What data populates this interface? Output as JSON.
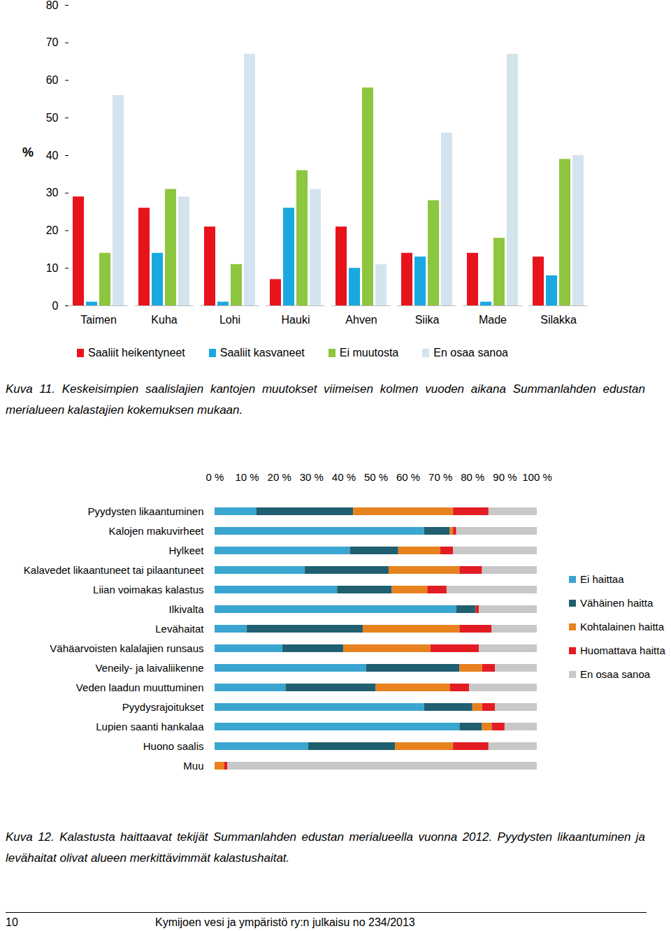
{
  "chart_data": [
    {
      "type": "bar",
      "ylabel": "%",
      "categories": [
        "Taimen",
        "Kuha",
        "Lohi",
        "Hauki",
        "Ahven",
        "Siika",
        "Made",
        "Silakka"
      ],
      "series": [
        {
          "name": "Saaliit heikentyneet",
          "color": "#e8141b",
          "values": [
            29,
            26,
            21,
            7,
            21,
            14,
            14,
            13
          ]
        },
        {
          "name": "Saaliit kasvaneet",
          "color": "#19a9e0",
          "values": [
            1,
            14,
            1,
            26,
            10,
            13,
            1,
            8
          ]
        },
        {
          "name": "Ei muutosta",
          "color": "#8dc63f",
          "values": [
            14,
            31,
            11,
            36,
            58,
            28,
            18,
            39
          ]
        },
        {
          "name": "En osaa sanoa",
          "color": "#d3e4ef",
          "values": [
            56,
            29,
            67,
            31,
            11,
            46,
            67,
            40
          ]
        }
      ],
      "ylim": [
        0,
        80
      ],
      "yticks": [
        0,
        10,
        20,
        30,
        40,
        50,
        60,
        70,
        80
      ],
      "grid": false,
      "legend": "bottom",
      "caption": "Kuva 11.  Keskeisimpien saalislajien kantojen muutokset viimeisen kolmen vuoden aikana Summanlahden edustan merialueen kalastajien kokemuksen mukaan."
    },
    {
      "type": "bar",
      "orientation": "horizontal",
      "stacked": true,
      "categories": [
        "Pyydysten likaantuminen",
        "Kalojen makuvirheet",
        "Hylkeet",
        "Kalavedet likaantuneet tai pilaantuneet",
        "Liian voimakas kalastus",
        "Ilkivalta",
        "Levähaitat",
        "Vähäarvoisten kalalajien runsaus",
        "Veneily- ja laivaliikenne",
        "Veden laadun muuttuminen",
        "Pyydysrajoitukset",
        "Lupien saanti hankalaa",
        "Huono saalis",
        "Muu"
      ],
      "series": [
        {
          "name": "Ei haittaa",
          "color": "#3aa6d0",
          "values": [
            13,
            65,
            42,
            28,
            38,
            75,
            10,
            21,
            47,
            22,
            65,
            76,
            29,
            0
          ]
        },
        {
          "name": "Vähäinen haitta",
          "color": "#1f5f70",
          "values": [
            30,
            8,
            15,
            26,
            17,
            6,
            36,
            19,
            29,
            28,
            15,
            7,
            27,
            0
          ]
        },
        {
          "name": "Kohtalainen haitta",
          "color": "#e8821e",
          "values": [
            31,
            1,
            13,
            22,
            11,
            0,
            30,
            27,
            7,
            23,
            3,
            3,
            18,
            3
          ]
        },
        {
          "name": "Huomattava haitta",
          "color": "#e31b23",
          "values": [
            11,
            1,
            4,
            7,
            6,
            1,
            10,
            15,
            4,
            6,
            4,
            4,
            11,
            1
          ]
        },
        {
          "name": "En osaa sanoa",
          "color": "#c8c8c8",
          "values": [
            15,
            25,
            26,
            17,
            28,
            18,
            14,
            18,
            13,
            21,
            13,
            10,
            15,
            96
          ]
        }
      ],
      "xlim": [
        0,
        100
      ],
      "xticks": [
        {
          "value": 0,
          "label": "0 %"
        },
        {
          "value": 10,
          "label": "10 %"
        },
        {
          "value": 20,
          "label": "20 %"
        },
        {
          "value": 30,
          "label": "30 %"
        },
        {
          "value": 40,
          "label": "40 %"
        },
        {
          "value": 50,
          "label": "50 %"
        },
        {
          "value": 60,
          "label": "60 %"
        },
        {
          "value": 70,
          "label": "70 %"
        },
        {
          "value": 80,
          "label": "80 %"
        },
        {
          "value": 90,
          "label": "90 %"
        },
        {
          "value": 100,
          "label": "100 %"
        }
      ],
      "grid": false,
      "legend": "right",
      "caption": "Kuva 12. Kalastusta haittaavat tekijät Summanlahden edustan merialueella vuonna 2012. Pyydysten likaantuminen ja levähaitat olivat alueen merkittävimmät kalastushaitat."
    }
  ],
  "footer": {
    "page": "10",
    "publication": "Kymijoen vesi ja ympäristö ry:n julkaisu no 234/2013"
  }
}
